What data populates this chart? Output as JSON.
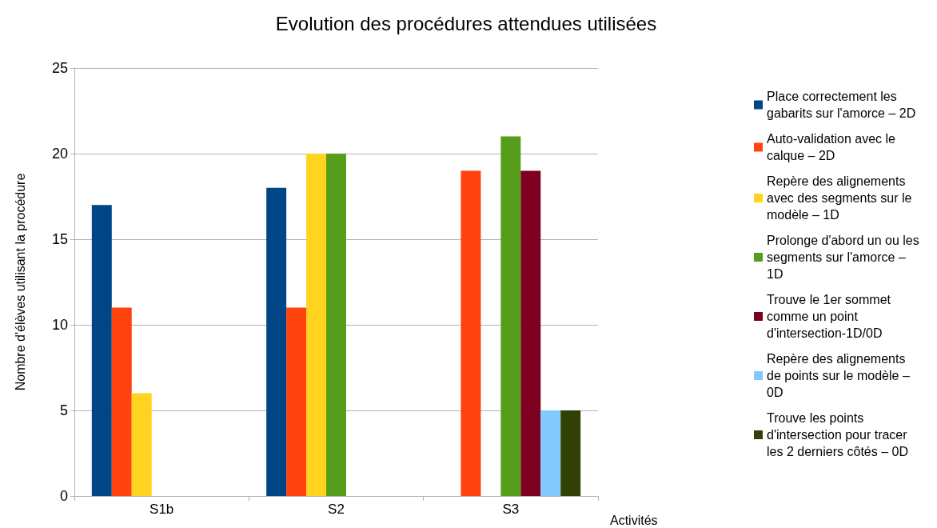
{
  "chart_data": {
    "type": "bar",
    "title": "Evolution des procédures attendues utilisées",
    "xlabel": "Activités",
    "ylabel": "Nombre d'élèves utilisant la procédure",
    "categories": [
      "S1b",
      "S2",
      "S3"
    ],
    "series": [
      {
        "name": "Place correctement les gabarits sur l'amorce – 2D",
        "color": "#004586",
        "values": [
          17,
          18,
          null
        ]
      },
      {
        "name": "Auto-validation avec le calque – 2D",
        "color": "#ff420e",
        "values": [
          11,
          11,
          19
        ]
      },
      {
        "name": "Repère des alignements avec des segments sur le modèle – 1D",
        "color": "#ffd320",
        "values": [
          6,
          20,
          null
        ]
      },
      {
        "name": "Prolonge d'abord un ou les segments sur l'amorce – 1D",
        "color": "#579d1c",
        "values": [
          null,
          20,
          21
        ]
      },
      {
        "name": "Trouve le 1er sommet comme un point d'intersection-1D/0D",
        "color": "#7e0021",
        "values": [
          null,
          null,
          19
        ]
      },
      {
        "name": "Repère des alignements de points sur le modèle – 0D",
        "color": "#83caff",
        "values": [
          null,
          null,
          5
        ]
      },
      {
        "name": "Trouve les points d'intersection pour tracer les 2 derniers côtés – 0D",
        "color": "#314004",
        "values": [
          null,
          null,
          5
        ]
      }
    ],
    "ylim": [
      0,
      25
    ],
    "yticks": [
      0,
      5,
      10,
      15,
      20,
      25
    ],
    "grid": "y",
    "legend": "right"
  }
}
